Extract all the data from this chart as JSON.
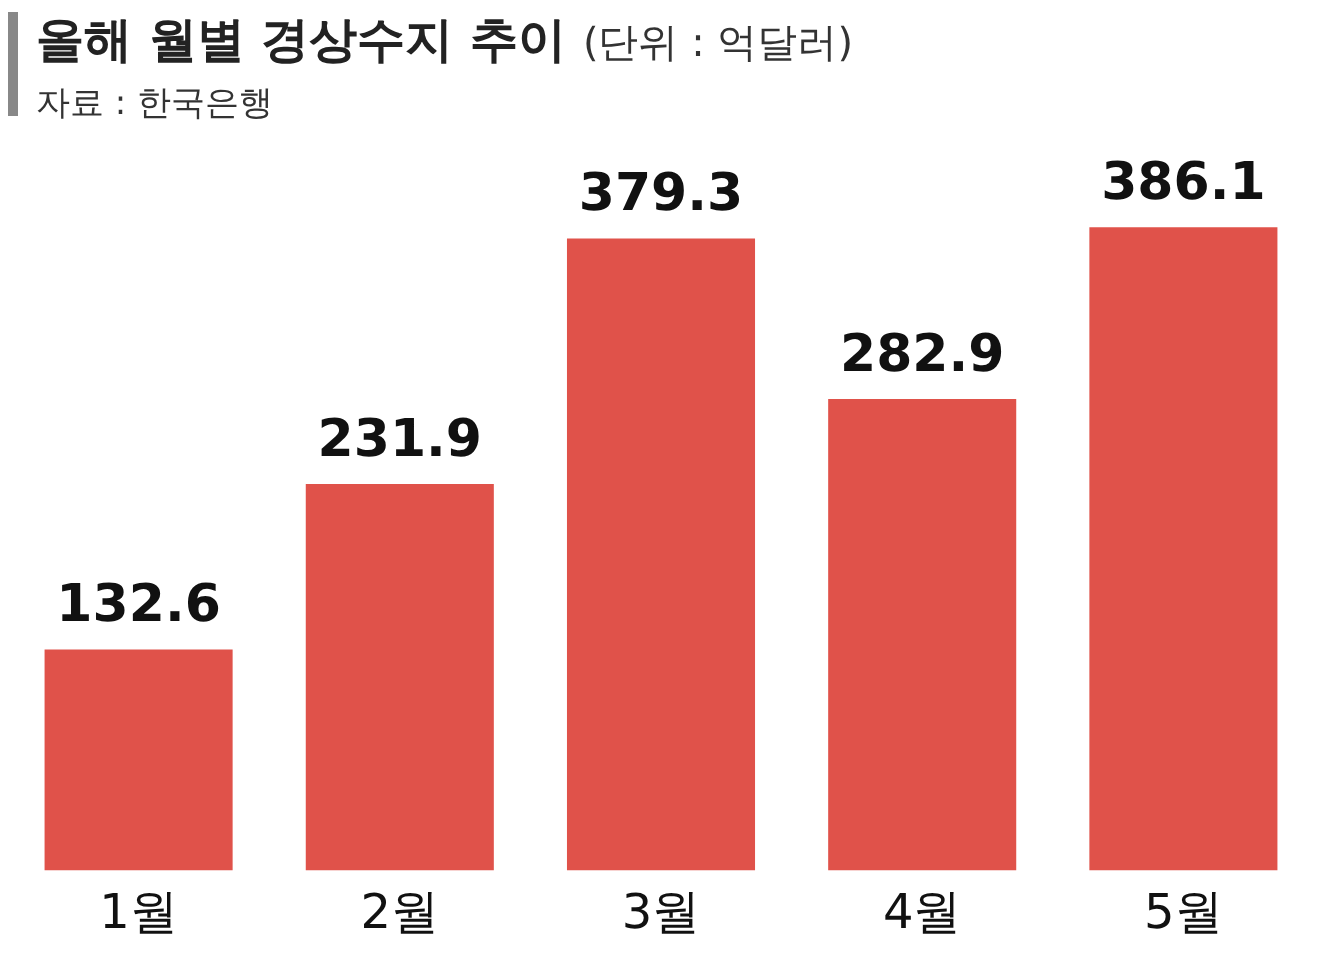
{
  "chart_data": {
    "type": "bar",
    "title": "올해 월별 경상수지 추이",
    "subtitle": "(단위 : 억달러)",
    "annotations": [
      "자료 : 한국은행"
    ],
    "categories": [
      "1월",
      "2월",
      "3월",
      "4월",
      "5월"
    ],
    "values": [
      132.6,
      231.9,
      379.3,
      282.9,
      386.1
    ],
    "color": "#e0524a",
    "data_labels": true,
    "grid": false,
    "legend": false
  }
}
